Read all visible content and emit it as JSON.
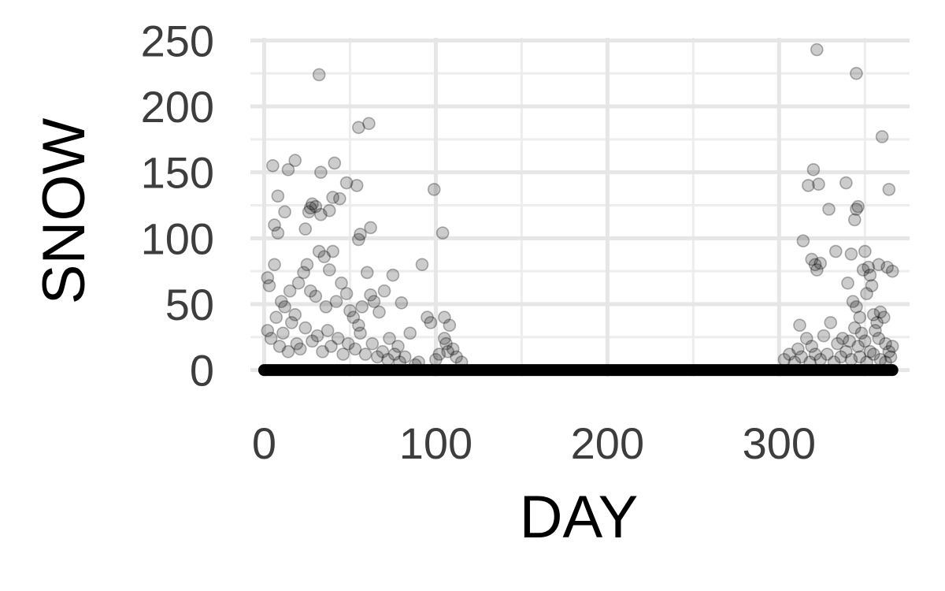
{
  "chart_data": {
    "type": "scatter",
    "xlabel": "DAY",
    "ylabel": "SNOW",
    "xlim": [
      -8,
      376
    ],
    "ylim": [
      -5,
      252
    ],
    "x_ticks": [
      0,
      100,
      200,
      300
    ],
    "x_tick_labels": [
      "0",
      "100",
      "200",
      "300"
    ],
    "x_minor_ticks": [
      50,
      150,
      250,
      350
    ],
    "y_ticks": [
      0,
      50,
      100,
      150,
      200,
      250
    ],
    "y_tick_labels": [
      "0",
      "50",
      "100",
      "150",
      "200",
      "250"
    ],
    "y_minor_ticks": [
      25,
      75,
      125,
      175,
      225
    ],
    "grid": true,
    "point_color": "#000000",
    "point_alpha": 0.2,
    "zero_band": {
      "x_from": 0,
      "x_to": 366,
      "y": 0
    },
    "points": [
      [
        5,
        155
      ],
      [
        14,
        152
      ],
      [
        18,
        159
      ],
      [
        12,
        120
      ],
      [
        6,
        110
      ],
      [
        8,
        104
      ],
      [
        8,
        132
      ],
      [
        24,
        107
      ],
      [
        26,
        120
      ],
      [
        28,
        126
      ],
      [
        30,
        124
      ],
      [
        33,
        118
      ],
      [
        27,
        123
      ],
      [
        38,
        121
      ],
      [
        40,
        131
      ],
      [
        33,
        150
      ],
      [
        41,
        157
      ],
      [
        44,
        130
      ],
      [
        48,
        142
      ],
      [
        54,
        140
      ],
      [
        56,
        103
      ],
      [
        55,
        99
      ],
      [
        62,
        108
      ],
      [
        55,
        184
      ],
      [
        61,
        187
      ],
      [
        32,
        224
      ],
      [
        2,
        70
      ],
      [
        3,
        64
      ],
      [
        6,
        80
      ],
      [
        10,
        52
      ],
      [
        12,
        48
      ],
      [
        15,
        60
      ],
      [
        18,
        42
      ],
      [
        20,
        66
      ],
      [
        23,
        74
      ],
      [
        25,
        80
      ],
      [
        27,
        60
      ],
      [
        30,
        56
      ],
      [
        32,
        90
      ],
      [
        35,
        86
      ],
      [
        36,
        48
      ],
      [
        38,
        76
      ],
      [
        40,
        90
      ],
      [
        42,
        52
      ],
      [
        45,
        66
      ],
      [
        48,
        58
      ],
      [
        50,
        45
      ],
      [
        52,
        40
      ],
      [
        55,
        34
      ],
      [
        57,
        48
      ],
      [
        60,
        74
      ],
      [
        62,
        57
      ],
      [
        64,
        52
      ],
      [
        67,
        44
      ],
      [
        70,
        60
      ],
      [
        75,
        72
      ],
      [
        80,
        51
      ],
      [
        85,
        28
      ],
      [
        73,
        24
      ],
      [
        78,
        18
      ],
      [
        2,
        30
      ],
      [
        4,
        24
      ],
      [
        7,
        40
      ],
      [
        9,
        18
      ],
      [
        11,
        28
      ],
      [
        14,
        14
      ],
      [
        16,
        36
      ],
      [
        19,
        20
      ],
      [
        21,
        16
      ],
      [
        24,
        32
      ],
      [
        28,
        22
      ],
      [
        31,
        26
      ],
      [
        34,
        14
      ],
      [
        37,
        30
      ],
      [
        39,
        18
      ],
      [
        43,
        24
      ],
      [
        46,
        12
      ],
      [
        49,
        20
      ],
      [
        53,
        16
      ],
      [
        56,
        28
      ],
      [
        59,
        12
      ],
      [
        63,
        20
      ],
      [
        66,
        10
      ],
      [
        69,
        14
      ],
      [
        72,
        8
      ],
      [
        76,
        12
      ],
      [
        79,
        6
      ],
      [
        82,
        10
      ],
      [
        88,
        4
      ],
      [
        90,
        6
      ],
      [
        92,
        80
      ],
      [
        95,
        40
      ],
      [
        97,
        36
      ],
      [
        99,
        137
      ],
      [
        104,
        104
      ],
      [
        105,
        40
      ],
      [
        105,
        24
      ],
      [
        106,
        20
      ],
      [
        107,
        14
      ],
      [
        108,
        34
      ],
      [
        110,
        16
      ],
      [
        112,
        10
      ],
      [
        115,
        6
      ],
      [
        100,
        8
      ],
      [
        102,
        12
      ],
      [
        314,
        98
      ],
      [
        319,
        84
      ],
      [
        321,
        80
      ],
      [
        322,
        76
      ],
      [
        324,
        81
      ],
      [
        317,
        140
      ],
      [
        320,
        152
      ],
      [
        323,
        141
      ],
      [
        329,
        122
      ],
      [
        333,
        90
      ],
      [
        339,
        142
      ],
      [
        342,
        88
      ],
      [
        344,
        114
      ],
      [
        345,
        122
      ],
      [
        346,
        124
      ],
      [
        350,
        90
      ],
      [
        352,
        78
      ],
      [
        353,
        72
      ],
      [
        349,
        76
      ],
      [
        354,
        64
      ],
      [
        358,
        80
      ],
      [
        363,
        78
      ],
      [
        366,
        75
      ],
      [
        364,
        137
      ],
      [
        360,
        177
      ],
      [
        345,
        225
      ],
      [
        322,
        243
      ],
      [
        340,
        66
      ],
      [
        343,
        52
      ],
      [
        345,
        48
      ],
      [
        347,
        40
      ],
      [
        351,
        58
      ],
      [
        355,
        42
      ],
      [
        357,
        36
      ],
      [
        359,
        44
      ],
      [
        361,
        40
      ],
      [
        362,
        20
      ],
      [
        364,
        14
      ],
      [
        366,
        18
      ],
      [
        365,
        10
      ],
      [
        312,
        34
      ],
      [
        316,
        24
      ],
      [
        319,
        18
      ],
      [
        321,
        12
      ],
      [
        326,
        26
      ],
      [
        330,
        36
      ],
      [
        334,
        20
      ],
      [
        337,
        24
      ],
      [
        341,
        22
      ],
      [
        344,
        32
      ],
      [
        346,
        18
      ],
      [
        348,
        28
      ],
      [
        350,
        22
      ],
      [
        353,
        14
      ],
      [
        356,
        30
      ],
      [
        358,
        24
      ],
      [
        303,
        8
      ],
      [
        306,
        12
      ],
      [
        309,
        6
      ],
      [
        311,
        16
      ],
      [
        313,
        10
      ],
      [
        318,
        6
      ],
      [
        324,
        8
      ],
      [
        328,
        12
      ],
      [
        332,
        6
      ],
      [
        336,
        10
      ],
      [
        339,
        14
      ],
      [
        342,
        8
      ],
      [
        347,
        10
      ],
      [
        351,
        6
      ],
      [
        355,
        12
      ],
      [
        359,
        8
      ],
      [
        362,
        6
      ]
    ]
  }
}
